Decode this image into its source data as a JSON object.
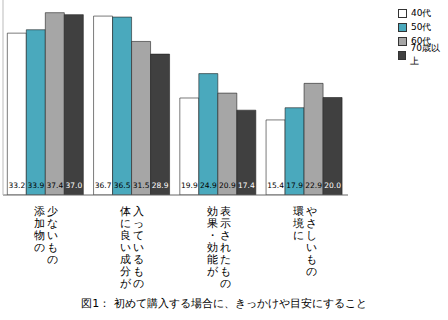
{
  "chart_data": {
    "type": "bar",
    "title": "図1： 初めて購入する場合に、きっかけや目安にすること",
    "categories": [
      "添加物の\n少ないもの",
      "体に良い成分が\n入っているもの",
      "効果・効能が\n表示されたもの",
      "環境に\nやさしいもの"
    ],
    "series": [
      {
        "name": "40代",
        "color": "#ffffff",
        "values": [
          33.2,
          36.7,
          19.9,
          15.4
        ],
        "value_labels": [
          "33.2",
          "36.7",
          "19.9",
          "15.4"
        ]
      },
      {
        "name": "50代",
        "color": "#4aa9bd",
        "values": [
          33.9,
          36.5,
          24.9,
          17.9
        ],
        "value_labels": [
          "33.9",
          "36.5",
          "24.9",
          "17.9"
        ]
      },
      {
        "name": "60代",
        "color": "#a6a6a6",
        "values": [
          37.4,
          31.5,
          20.9,
          22.9
        ],
        "value_labels": [
          "37.4",
          "31.5",
          "20.9",
          "22.9"
        ]
      },
      {
        "name": "70歳以上",
        "color": "#404040",
        "values": [
          37.0,
          28.9,
          17.4,
          20.0
        ],
        "value_labels": [
          "37.0",
          "28.9",
          "17.4",
          "20.0"
        ]
      }
    ],
    "ylim": [
      0,
      40
    ],
    "yticks": [
      0,
      40
    ],
    "legend": "upper right",
    "data_labels": true,
    "tick_labels": "x",
    "grid": false
  }
}
